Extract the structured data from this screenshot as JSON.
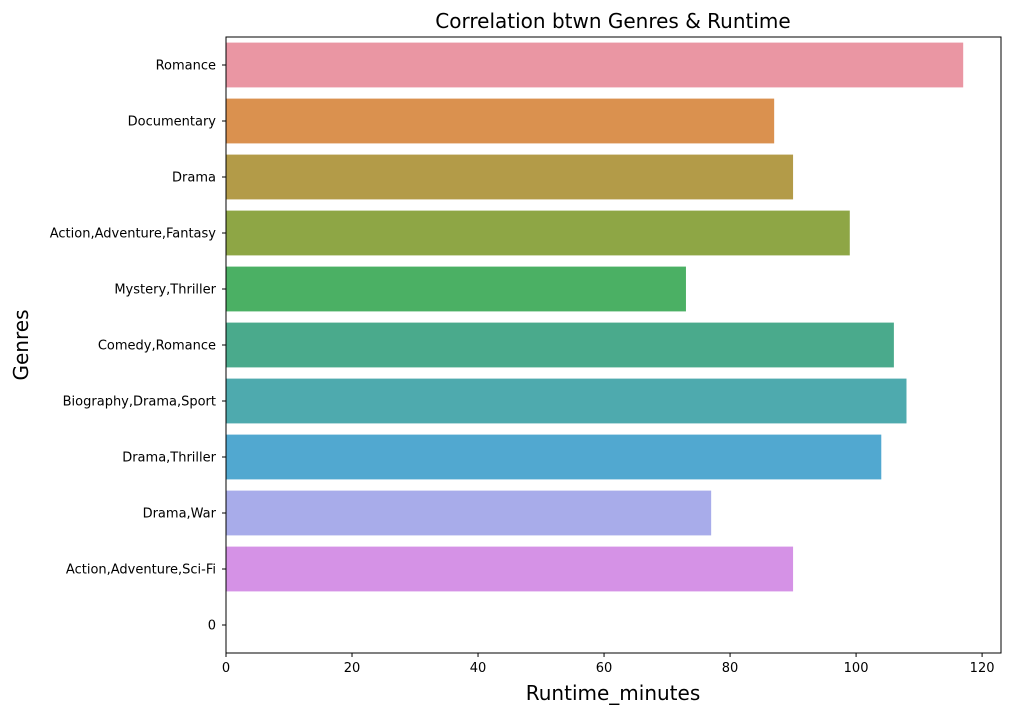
{
  "chart_data": {
    "type": "bar",
    "orientation": "horizontal",
    "title": "Correlation btwn Genres & Runtime",
    "xlabel": "Runtime_minutes",
    "ylabel": "Genres",
    "xlim": [
      0,
      123
    ],
    "xticks": [
      "0",
      "20",
      "40",
      "60",
      "80",
      "100",
      "120"
    ],
    "grid": false,
    "categories": [
      "Romance",
      "Documentary",
      "Drama",
      "Action,Adventure,Fantasy",
      "Mystery,Thriller",
      "Comedy,Romance",
      "Biography,Drama,Sport",
      "Drama,Thriller",
      "Drama,War",
      "Action,Adventure,Sci-Fi",
      "0"
    ],
    "values": [
      117,
      87,
      90,
      99,
      73,
      106,
      108,
      104,
      77,
      90,
      0
    ],
    "colors": [
      "#ea96a3",
      "#da914f",
      "#b39b48",
      "#8ea645",
      "#4bb064",
      "#4aaa8c",
      "#4eaaae",
      "#51a8d0",
      "#a8acea",
      "#d592e6",
      "#ffffff"
    ]
  }
}
